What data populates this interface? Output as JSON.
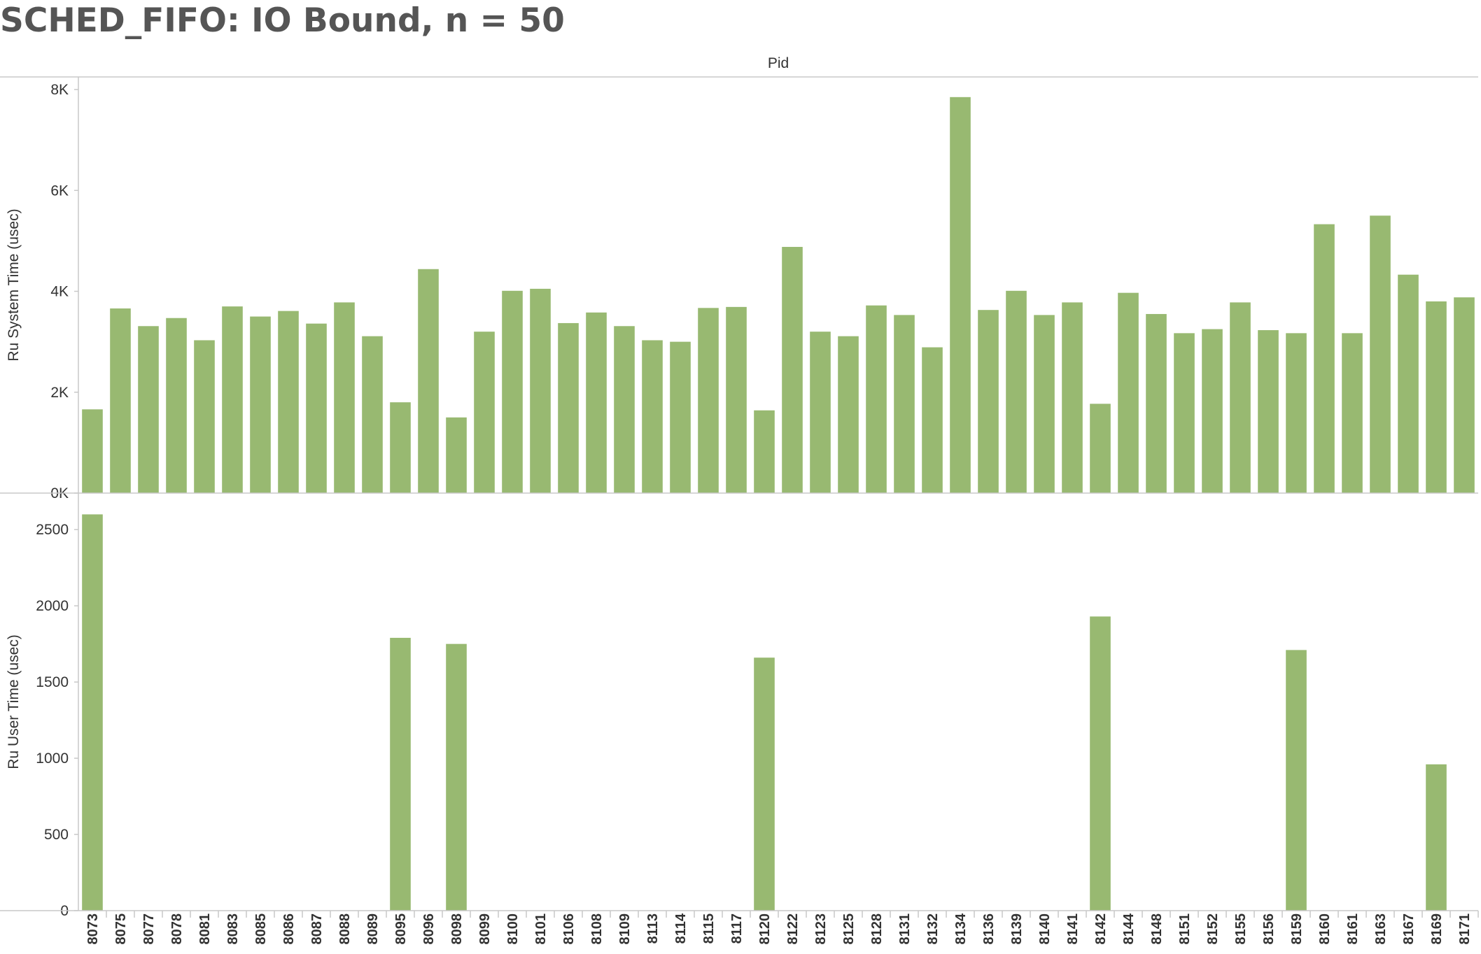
{
  "title": "SCHED_FIFO: IO Bound, n = 50",
  "colors": {
    "bar": "#98b971",
    "axis": "#c8c8c8",
    "text": "#333333",
    "title": "#555555"
  },
  "chart_data": {
    "type": "bar",
    "header_label": "Pid",
    "categories": [
      "8073",
      "8075",
      "8077",
      "8078",
      "8081",
      "8083",
      "8085",
      "8086",
      "8087",
      "8088",
      "8089",
      "8095",
      "8096",
      "8098",
      "8099",
      "8100",
      "8101",
      "8106",
      "8108",
      "8109",
      "8113",
      "8114",
      "8115",
      "8117",
      "8120",
      "8122",
      "8123",
      "8125",
      "8128",
      "8131",
      "8132",
      "8134",
      "8136",
      "8139",
      "8140",
      "8141",
      "8142",
      "8144",
      "8148",
      "8151",
      "8152",
      "8155",
      "8156",
      "8159",
      "8160",
      "8161",
      "8163",
      "8167",
      "8169",
      "8171"
    ],
    "panels": [
      {
        "ylabel": "Ru System Time (usec)",
        "ylim": [
          0,
          8000
        ],
        "ticks": [
          0,
          2000,
          4000,
          6000,
          8000
        ],
        "tick_labels": [
          "0K",
          "2K",
          "4K",
          "6K",
          "8K"
        ],
        "values": [
          1660,
          3660,
          3310,
          3470,
          3030,
          3700,
          3500,
          3610,
          3360,
          3780,
          3110,
          1800,
          4440,
          1500,
          3200,
          4010,
          4050,
          3370,
          3580,
          3310,
          3030,
          3000,
          3670,
          3690,
          1640,
          4880,
          3200,
          3110,
          3720,
          3530,
          2890,
          7850,
          3630,
          4010,
          3530,
          3780,
          1770,
          3970,
          3550,
          3170,
          3250,
          3780,
          3230,
          3170,
          5330,
          3170,
          5500,
          4330,
          3800,
          3880
        ]
      },
      {
        "ylabel": "Ru User Time (usec)",
        "ylim": [
          0,
          2680
        ],
        "ticks": [
          0,
          500,
          1000,
          1500,
          2000,
          2500
        ],
        "tick_labels": [
          "0",
          "500",
          "1000",
          "1500",
          "2000",
          "2500"
        ],
        "values": [
          2600,
          0,
          0,
          0,
          0,
          0,
          0,
          0,
          0,
          0,
          0,
          1790,
          0,
          1750,
          0,
          0,
          0,
          0,
          0,
          0,
          0,
          0,
          0,
          0,
          1660,
          0,
          0,
          0,
          0,
          0,
          0,
          0,
          0,
          0,
          0,
          0,
          1930,
          0,
          0,
          0,
          0,
          0,
          0,
          1710,
          0,
          0,
          0,
          0,
          960,
          0
        ]
      }
    ],
    "grid": false,
    "legend": "none"
  }
}
